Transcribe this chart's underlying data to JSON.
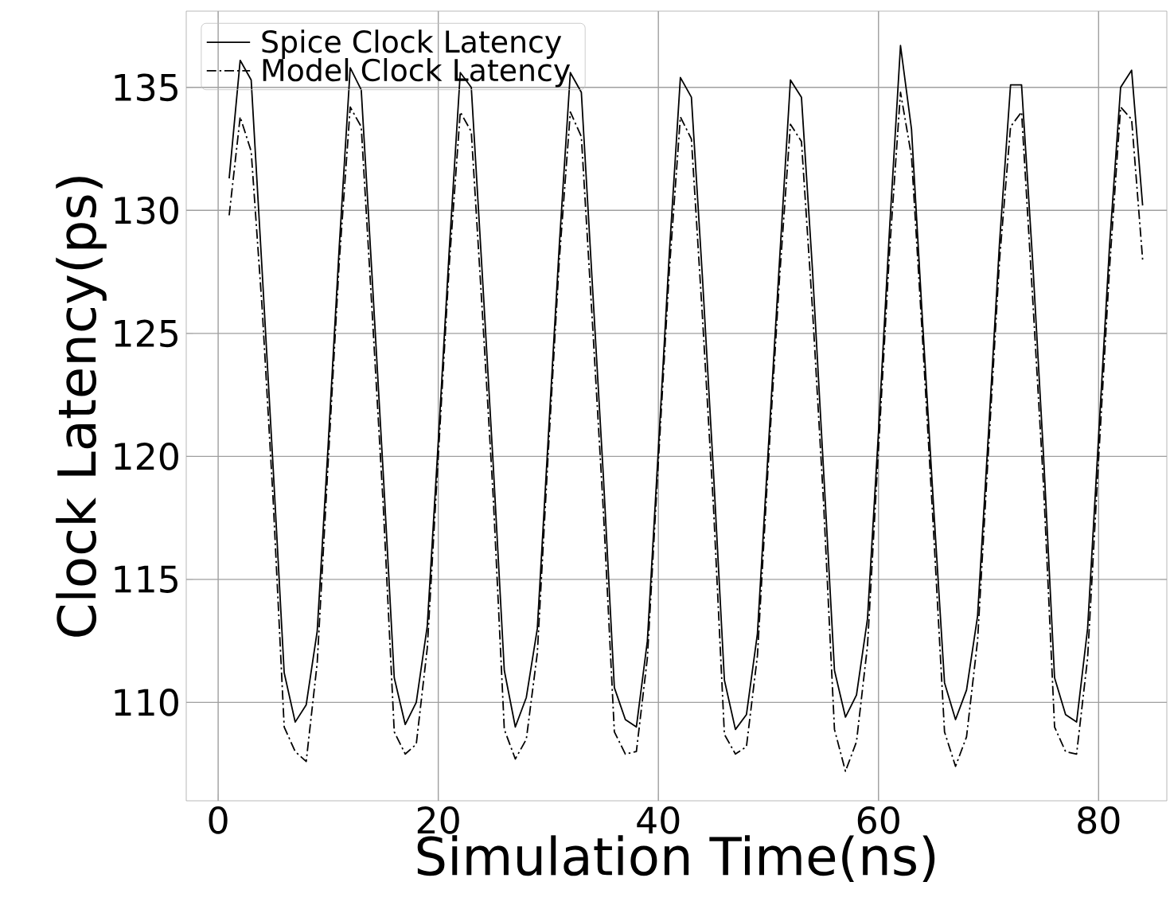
{
  "chart_data": {
    "type": "line",
    "xlabel": "Simulation Time(ns)",
    "ylabel": "Clock Latency(ps)",
    "x": [
      1,
      2,
      3,
      4,
      5,
      6,
      7,
      8,
      9,
      10,
      11,
      12,
      13,
      14,
      15,
      16,
      17,
      18,
      19,
      20,
      21,
      22,
      23,
      24,
      25,
      26,
      27,
      28,
      29,
      30,
      31,
      32,
      33,
      34,
      35,
      36,
      37,
      38,
      39,
      40,
      41,
      42,
      43,
      44,
      45,
      46,
      47,
      48,
      49,
      50,
      51,
      52,
      53,
      54,
      55,
      56,
      57,
      58,
      59,
      60,
      61,
      62,
      63,
      64,
      65,
      66,
      67,
      68,
      69,
      70,
      71,
      72,
      73,
      74,
      75,
      76,
      77,
      78,
      79,
      80,
      81,
      82,
      83,
      84
    ],
    "series": [
      {
        "name": "Spice Clock Latency",
        "color": "#000000",
        "line_style": "solid",
        "values": [
          131.3,
          136.1,
          135.3,
          127.5,
          119.5,
          111.2,
          109.2,
          109.9,
          112.9,
          120.5,
          128.5,
          135.8,
          134.9,
          127.2,
          119.3,
          111.0,
          109.1,
          110.0,
          113.1,
          120.6,
          128.4,
          135.6,
          135.0,
          127.4,
          119.6,
          111.3,
          109.0,
          110.2,
          113.0,
          120.8,
          128.6,
          135.6,
          134.8,
          127.0,
          119.2,
          110.6,
          109.3,
          109.0,
          112.5,
          120.3,
          128.3,
          135.4,
          134.6,
          127.3,
          119.4,
          110.9,
          108.9,
          109.5,
          112.8,
          120.4,
          127.9,
          135.3,
          134.6,
          127.6,
          119.5,
          111.3,
          109.4,
          110.3,
          113.4,
          121.0,
          129.2,
          136.7,
          133.3,
          125.5,
          118.0,
          110.8,
          109.3,
          110.5,
          113.5,
          121.0,
          128.7,
          135.1,
          135.1,
          128.0,
          120.0,
          111.0,
          109.5,
          109.2,
          113.0,
          120.8,
          128.6,
          135.0,
          135.7,
          130.2
        ]
      },
      {
        "name": "Model Clock Latency",
        "color": "#000000",
        "line_style": "dashdot",
        "values": [
          129.8,
          133.8,
          132.4,
          126.0,
          118.2,
          109.0,
          108.0,
          107.6,
          111.6,
          119.8,
          127.9,
          134.2,
          133.4,
          125.8,
          118.0,
          108.8,
          107.9,
          108.3,
          112.2,
          120.0,
          127.8,
          134.0,
          133.2,
          125.9,
          118.3,
          108.9,
          107.7,
          108.5,
          112.0,
          120.2,
          128.0,
          134.0,
          133.0,
          125.5,
          117.8,
          108.8,
          107.9,
          108.0,
          111.8,
          119.8,
          127.6,
          133.8,
          132.9,
          125.7,
          118.0,
          108.7,
          107.9,
          108.2,
          111.9,
          119.8,
          127.2,
          133.5,
          132.8,
          126.0,
          118.2,
          108.9,
          107.2,
          108.4,
          112.3,
          120.3,
          128.3,
          134.8,
          132.2,
          124.8,
          117.0,
          108.8,
          107.4,
          108.6,
          112.5,
          120.3,
          128.0,
          133.4,
          134.0,
          126.5,
          118.8,
          109.0,
          108.0,
          107.9,
          111.8,
          119.9,
          127.7,
          134.2,
          133.7,
          128.0
        ]
      }
    ],
    "xlim": [
      -2.9,
      86.2
    ],
    "ylim": [
      106.0,
      138.1
    ],
    "xticks": [
      0,
      20,
      40,
      60,
      80
    ],
    "yticks": [
      110,
      115,
      120,
      125,
      130,
      135
    ],
    "grid": true,
    "legend": "top left"
  }
}
